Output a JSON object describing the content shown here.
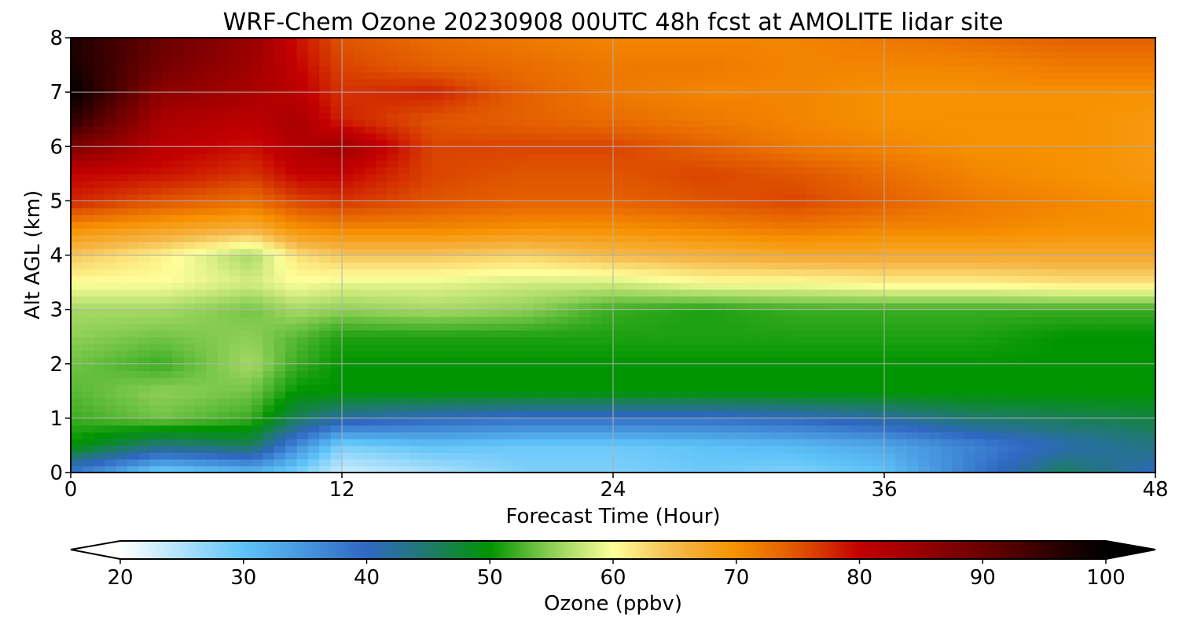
{
  "chart_data": {
    "type": "heatmap",
    "title": "WRF-Chem Ozone  20230908 00UTC 48h fcst at AMOLITE lidar site",
    "xlabel": "Forecast Time (Hour)",
    "ylabel": "Alt AGL (km)",
    "xlim": [
      0,
      48
    ],
    "ylim": [
      0,
      8
    ],
    "x_ticks": [
      "0",
      "12",
      "24",
      "36",
      "48"
    ],
    "y_ticks": [
      "0",
      "1",
      "2",
      "3",
      "4",
      "5",
      "6",
      "7",
      "8"
    ],
    "grid": true,
    "x": [
      0,
      4,
      8,
      10,
      12,
      16,
      20,
      24,
      28,
      32,
      36,
      40,
      44,
      48
    ],
    "y": [
      0,
      0.5,
      1,
      1.5,
      2,
      2.5,
      3,
      3.5,
      4,
      4.5,
      5,
      5.5,
      6,
      6.5,
      7,
      7.5,
      8
    ],
    "z": [
      [
        38,
        28,
        31,
        28,
        23,
        25,
        28,
        28,
        29,
        28,
        30,
        38,
        46,
        40
      ],
      [
        50,
        44,
        46,
        36,
        28,
        30,
        29,
        29,
        30,
        31,
        33,
        37,
        41,
        44
      ],
      [
        52,
        54,
        52,
        46,
        42,
        40,
        39,
        39,
        39,
        40,
        42,
        45,
        46,
        47
      ],
      [
        53,
        55,
        54,
        50,
        50,
        50,
        50,
        50,
        50,
        50,
        50,
        50,
        50,
        50
      ],
      [
        54,
        52,
        56,
        52,
        50,
        50,
        50,
        50,
        50,
        50,
        50,
        50,
        50,
        50
      ],
      [
        55,
        54,
        55,
        53,
        51,
        51,
        51,
        51,
        51,
        51,
        51,
        51,
        50,
        50
      ],
      [
        56,
        56,
        54,
        56,
        55,
        56,
        55,
        52,
        51,
        52,
        52,
        52,
        52,
        52
      ],
      [
        60,
        60,
        58,
        60,
        59,
        59,
        58,
        58,
        60,
        60,
        61,
        61,
        62,
        62
      ],
      [
        64,
        61,
        56,
        62,
        64,
        64,
        63,
        65,
        66,
        67,
        67,
        67,
        67,
        67
      ],
      [
        70,
        68,
        66,
        70,
        71,
        71,
        70,
        70,
        71,
        72,
        71,
        71,
        70,
        70
      ],
      [
        78,
        75,
        73,
        76,
        77,
        75,
        74,
        74,
        75,
        76,
        74,
        72,
        71,
        70
      ],
      [
        80,
        79,
        77,
        80,
        80,
        76,
        75,
        75,
        76,
        75,
        73,
        71,
        70,
        69
      ],
      [
        88,
        81,
        79,
        82,
        84,
        76,
        76,
        76,
        74,
        72,
        71,
        70,
        70,
        69
      ],
      [
        96,
        83,
        81,
        83,
        78,
        75,
        74,
        73,
        72,
        71,
        70,
        70,
        70,
        69
      ],
      [
        100,
        86,
        83,
        81,
        77,
        78,
        74,
        72,
        71,
        71,
        70,
        70,
        70,
        70
      ],
      [
        98,
        89,
        84,
        80,
        76,
        74,
        73,
        72,
        72,
        71,
        71,
        71,
        72,
        72
      ],
      [
        97,
        90,
        85,
        79,
        75,
        73,
        72,
        71,
        71,
        71,
        72,
        73,
        74,
        74
      ]
    ],
    "colorbar": {
      "label": "Ozone  (ppbv)",
      "min": 20,
      "max": 100,
      "ticks": [
        "20",
        "30",
        "40",
        "50",
        "60",
        "70",
        "80",
        "90",
        "100"
      ],
      "extend": "both",
      "colors": [
        {
          "value": 20,
          "color": "#ffffff"
        },
        {
          "value": 30,
          "color": "#5ec3f8"
        },
        {
          "value": 40,
          "color": "#2f67c2"
        },
        {
          "value": 45,
          "color": "#1f7a6d"
        },
        {
          "value": 50,
          "color": "#009400"
        },
        {
          "value": 55,
          "color": "#8fd055"
        },
        {
          "value": 60,
          "color": "#ffff9a"
        },
        {
          "value": 65,
          "color": "#f5b84a"
        },
        {
          "value": 70,
          "color": "#f79100"
        },
        {
          "value": 75,
          "color": "#e05500"
        },
        {
          "value": 80,
          "color": "#c40000"
        },
        {
          "value": 90,
          "color": "#6a0000"
        },
        {
          "value": 100,
          "color": "#000000"
        }
      ]
    }
  }
}
